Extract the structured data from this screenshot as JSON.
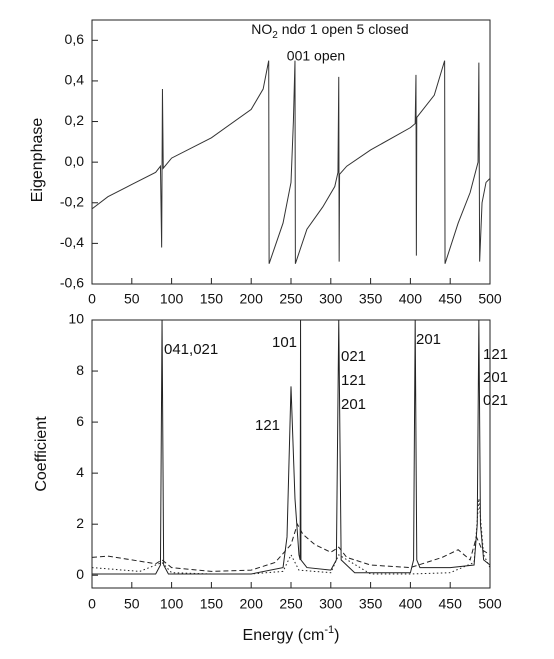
{
  "chart_data": [
    {
      "type": "line",
      "title": [
        "NO",
        "2",
        " ndσ 1 open 5 closed"
      ],
      "subtitle": "001 open",
      "y_label": "Eigenphase",
      "x": [
        0,
        20,
        50,
        80,
        86,
        87.5,
        88.5,
        89.5,
        100,
        150,
        200,
        215,
        222,
        222.5,
        240,
        250,
        253,
        255,
        255.5,
        270,
        290,
        305,
        309,
        310,
        310.5,
        311,
        320,
        350,
        400,
        406,
        407,
        407.5,
        408,
        430,
        443,
        443.5,
        460,
        475,
        485,
        486,
        487,
        490,
        495,
        500
      ],
      "values": [
        -0.23,
        -0.17,
        -0.11,
        -0.05,
        -0.02,
        -0.42,
        0.36,
        -0.03,
        0.02,
        0.12,
        0.26,
        0.36,
        0.5,
        -0.5,
        -0.3,
        -0.1,
        0.2,
        0.5,
        -0.5,
        -0.33,
        -0.22,
        -0.12,
        -0.05,
        0.42,
        -0.49,
        -0.06,
        -0.02,
        0.06,
        0.17,
        0.19,
        0.43,
        -0.46,
        0.22,
        0.33,
        0.5,
        -0.5,
        -0.3,
        -0.15,
        0.0,
        0.49,
        -0.49,
        -0.2,
        -0.1,
        -0.08
      ],
      "color": "#333333",
      "xlim": [
        0,
        500
      ],
      "ylim": [
        -0.6,
        0.7
      ],
      "xticks": [
        0,
        50,
        100,
        150,
        200,
        250,
        300,
        350,
        400,
        450,
        500
      ],
      "yticks": [
        {
          "value": -0.6,
          "label": "-0,6"
        },
        {
          "value": -0.4,
          "label": "-0,4"
        },
        {
          "value": -0.2,
          "label": "-0,2"
        },
        {
          "value": 0,
          "label": "0,0"
        },
        {
          "value": 0.2,
          "label": "0,2"
        },
        {
          "value": 0.4,
          "label": "0,4"
        },
        {
          "value": 0.6,
          "label": "0,6"
        }
      ]
    },
    {
      "type": "line",
      "x_label": [
        "Energy (cm",
        "-1",
        ")"
      ],
      "y_label": "Coefficient",
      "series": [
        {
          "color": "#222222",
          "dash": "solid",
          "x": [
            0,
            80,
            86,
            88,
            90,
            96,
            200,
            240,
            245,
            250,
            255,
            260,
            261.5,
            262,
            262.5,
            270,
            300,
            307,
            310,
            313,
            330,
            400,
            404,
            406,
            408,
            412,
            450,
            480,
            484,
            486,
            488,
            492,
            500
          ],
          "values": [
            0.05,
            0.05,
            0.4,
            10,
            0.4,
            0.05,
            0.05,
            0.3,
            1.5,
            7.4,
            3,
            0.8,
            0.6,
            10,
            0.6,
            0.3,
            0.2,
            0.6,
            10,
            0.6,
            0.1,
            0.1,
            0.6,
            10,
            0.6,
            0.3,
            0.3,
            0.4,
            2,
            10,
            2,
            0.6,
            0.4
          ]
        },
        {
          "color": "#222222",
          "dash": "dashed",
          "x": [
            0,
            20,
            50,
            80,
            88,
            100,
            150,
            200,
            230,
            250,
            258,
            265,
            280,
            300,
            310,
            320,
            350,
            400,
            420,
            440,
            460,
            475,
            483,
            490,
            500
          ],
          "values": [
            0.7,
            0.75,
            0.6,
            0.45,
            0.6,
            0.3,
            0.15,
            0.2,
            0.5,
            1.2,
            2.0,
            1.6,
            1.2,
            0.9,
            1.1,
            0.7,
            0.4,
            0.3,
            0.5,
            0.7,
            1.0,
            0.6,
            1.5,
            1.0,
            0.8
          ]
        },
        {
          "color": "#222222",
          "dash": "dotted",
          "x": [
            0,
            20,
            60,
            88,
            100,
            150,
            200,
            240,
            250,
            260,
            300,
            310,
            350,
            400,
            450,
            480,
            486,
            492,
            500
          ],
          "values": [
            0.3,
            0.25,
            0.15,
            0.5,
            0.1,
            0.05,
            0.05,
            0.15,
            0.8,
            0.2,
            0.1,
            0.8,
            0.05,
            0.05,
            0.1,
            0.5,
            3,
            0.8,
            0.3
          ]
        }
      ],
      "annotations": [
        [
          "041,021"
        ],
        [
          "101"
        ],
        [
          "121"
        ],
        [
          "021",
          "121",
          "201"
        ],
        [
          "201"
        ],
        [
          "121",
          "201",
          "021"
        ]
      ],
      "xlim": [
        0,
        500
      ],
      "ylim": [
        -0.5,
        10
      ],
      "xticks": [
        0,
        50,
        100,
        150,
        200,
        250,
        300,
        350,
        400,
        450,
        500
      ],
      "yticks": [
        0,
        2,
        4,
        6,
        8,
        10
      ]
    }
  ]
}
